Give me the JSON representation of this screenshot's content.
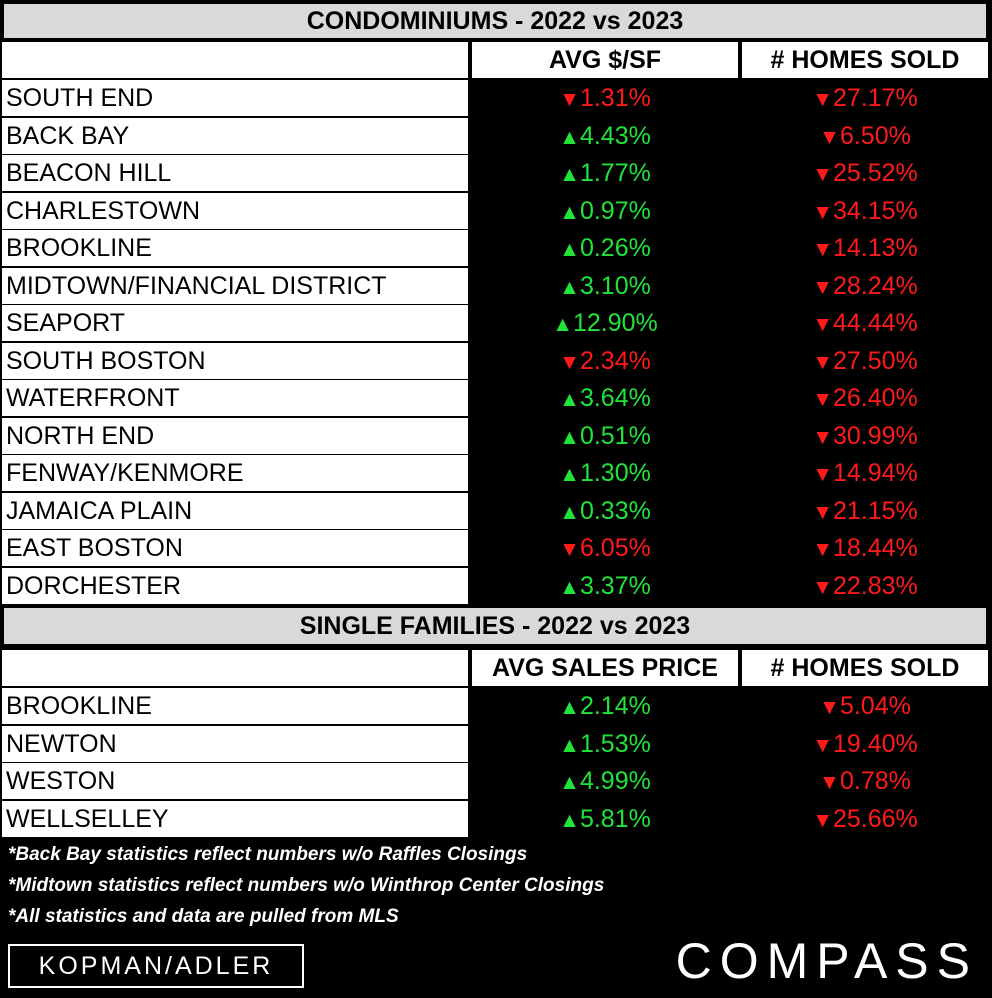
{
  "colors": {
    "up": "#22e33a",
    "down": "#ff1a1a",
    "title_bg": "#d9d9d9"
  },
  "condos": {
    "title": "CONDOMINIUMS - 2022 vs 2023",
    "col1": "AVG $/SF",
    "col2": "# HOMES SOLD"
  },
  "singles": {
    "title": "SINGLE FAMILIES - 2022 vs 2023",
    "col1": "AVG SALES PRICE",
    "col2": "# HOMES SOLD"
  },
  "chart_data": [
    {
      "type": "table",
      "title": "CONDOMINIUMS - 2022 vs 2023",
      "columns": [
        "AVG $/SF",
        "# HOMES SOLD"
      ],
      "rows": [
        {
          "name": "SOUTH END",
          "c1": "1.31%",
          "c1_dir": "down",
          "c2": "27.17%",
          "c2_dir": "down"
        },
        {
          "name": "BACK BAY",
          "c1": "4.43%",
          "c1_dir": "up",
          "c2": "6.50%",
          "c2_dir": "down"
        },
        {
          "name": "BEACON HILL",
          "c1": "1.77%",
          "c1_dir": "up",
          "c2": "25.52%",
          "c2_dir": "down"
        },
        {
          "name": "CHARLESTOWN",
          "c1": "0.97%",
          "c1_dir": "up",
          "c2": "34.15%",
          "c2_dir": "down"
        },
        {
          "name": "BROOKLINE",
          "c1": "0.26%",
          "c1_dir": "up",
          "c2": "14.13%",
          "c2_dir": "down"
        },
        {
          "name": "MIDTOWN/FINANCIAL DISTRICT",
          "c1": "3.10%",
          "c1_dir": "up",
          "c2": "28.24%",
          "c2_dir": "down"
        },
        {
          "name": "SEAPORT",
          "c1": "12.90%",
          "c1_dir": "up",
          "c2": "44.44%",
          "c2_dir": "down"
        },
        {
          "name": "SOUTH BOSTON",
          "c1": "2.34%",
          "c1_dir": "down",
          "c2": "27.50%",
          "c2_dir": "down"
        },
        {
          "name": "WATERFRONT",
          "c1": "3.64%",
          "c1_dir": "up",
          "c2": "26.40%",
          "c2_dir": "down"
        },
        {
          "name": "NORTH END",
          "c1": "0.51%",
          "c1_dir": "up",
          "c2": "30.99%",
          "c2_dir": "down"
        },
        {
          "name": "FENWAY/KENMORE",
          "c1": "1.30%",
          "c1_dir": "up",
          "c2": "14.94%",
          "c2_dir": "down"
        },
        {
          "name": "JAMAICA PLAIN",
          "c1": "0.33%",
          "c1_dir": "up",
          "c2": "21.15%",
          "c2_dir": "down"
        },
        {
          "name": "EAST BOSTON",
          "c1": "6.05%",
          "c1_dir": "down",
          "c2": "18.44%",
          "c2_dir": "down"
        },
        {
          "name": "DORCHESTER",
          "c1": "3.37%",
          "c1_dir": "up",
          "c2": "22.83%",
          "c2_dir": "down"
        }
      ]
    },
    {
      "type": "table",
      "title": "SINGLE FAMILIES - 2022 vs 2023",
      "columns": [
        "AVG SALES PRICE",
        "# HOMES SOLD"
      ],
      "rows": [
        {
          "name": "BROOKLINE",
          "c1": "2.14%",
          "c1_dir": "up",
          "c2": "5.04%",
          "c2_dir": "down"
        },
        {
          "name": "NEWTON",
          "c1": "1.53%",
          "c1_dir": "up",
          "c2": "19.40%",
          "c2_dir": "down"
        },
        {
          "name": "WESTON",
          "c1": "4.99%",
          "c1_dir": "up",
          "c2": "0.78%",
          "c2_dir": "down"
        },
        {
          "name": "WELLSELLEY",
          "c1": "5.81%",
          "c1_dir": "up",
          "c2": "25.66%",
          "c2_dir": "down"
        }
      ]
    }
  ],
  "notes": [
    "*Back Bay statistics reflect numbers w/o Raffles Closings",
    "*Midtown statistics reflect numbers w/o Winthrop Center Closings",
    "*All statistics and data are pulled from MLS"
  ],
  "logos": {
    "left": "KOPMAN/ADLER",
    "right": "COMPASS"
  }
}
